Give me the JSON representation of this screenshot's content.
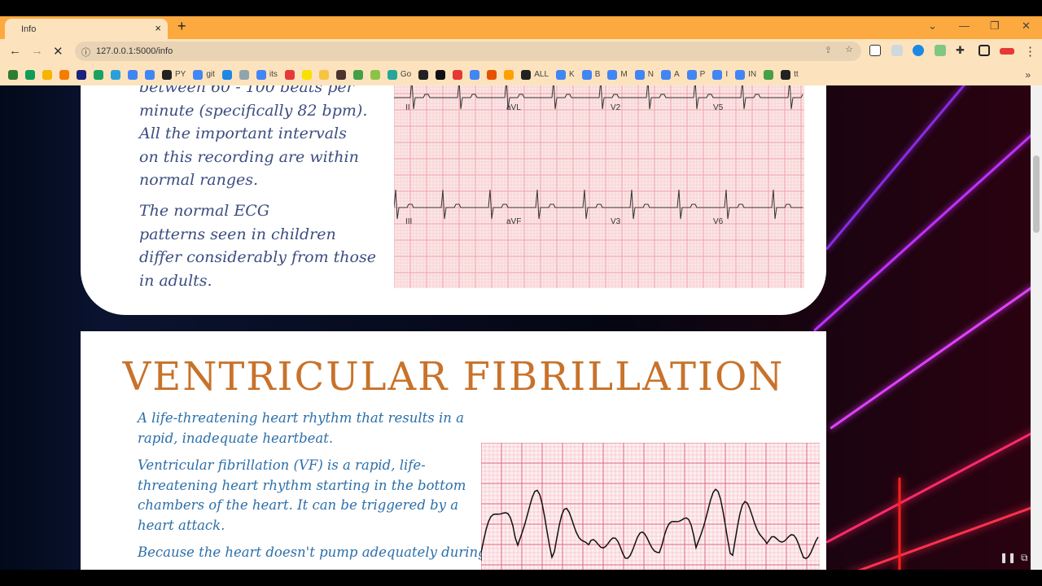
{
  "browser": {
    "tab_title": "Info",
    "tab_close": "×",
    "new_tab": "+",
    "url": "127.0.0.1:5000/info",
    "bookmarks": [
      {
        "label": "",
        "color": "#2e7d32"
      },
      {
        "label": "",
        "color": "#0f9d58"
      },
      {
        "label": "",
        "color": "#f4b400"
      },
      {
        "label": "",
        "color": "#f57c00"
      },
      {
        "label": "",
        "color": "#1a237e"
      },
      {
        "label": "",
        "color": "#1aa260"
      },
      {
        "label": "",
        "color": "#2aa0da"
      },
      {
        "label": "",
        "color": "#4285f4"
      },
      {
        "label": "",
        "color": "#4285f4"
      },
      {
        "label": "PY",
        "color": "#222"
      },
      {
        "label": "git",
        "color": "#4285f4"
      },
      {
        "label": "",
        "color": "#1e88e5"
      },
      {
        "label": "",
        "color": "#90a4ae"
      },
      {
        "label": "its",
        "color": "#4285f4"
      },
      {
        "label": "",
        "color": "#e53935"
      },
      {
        "label": "",
        "color": "#f9e000"
      },
      {
        "label": "",
        "color": "#f6c343"
      },
      {
        "label": "",
        "color": "#4e342e"
      },
      {
        "label": "",
        "color": "#43a047"
      },
      {
        "label": "",
        "color": "#8bc34a"
      },
      {
        "label": "Go",
        "color": "#26a69a"
      },
      {
        "label": "",
        "color": "#222"
      },
      {
        "label": "",
        "color": "#111"
      },
      {
        "label": "",
        "color": "#e53935"
      },
      {
        "label": "",
        "color": "#4285f4"
      },
      {
        "label": "",
        "color": "#e65100"
      },
      {
        "label": "",
        "color": "#ffa000"
      },
      {
        "label": "ALL",
        "color": "#222"
      },
      {
        "label": "K",
        "color": "#4285f4"
      },
      {
        "label": "B",
        "color": "#4285f4"
      },
      {
        "label": "M",
        "color": "#4285f4"
      },
      {
        "label": "N",
        "color": "#4285f4"
      },
      {
        "label": "A",
        "color": "#4285f4"
      },
      {
        "label": "P",
        "color": "#4285f4"
      },
      {
        "label": "I",
        "color": "#4285f4"
      },
      {
        "label": "IN",
        "color": "#4285f4"
      },
      {
        "label": "",
        "color": "#43a047"
      },
      {
        "label": "tt",
        "color": "#222"
      }
    ],
    "more_bookmarks": "»"
  },
  "card1": {
    "paragraph1_lines": [
      "between 60 - 100 beats per",
      "minute (specifically 82 bpm).",
      "All the important intervals",
      "on this recording are within",
      "normal ranges."
    ],
    "paragraph2_lines": [
      "The normal ECG",
      "patterns seen in children",
      "differ considerably from those",
      "in adults."
    ],
    "ecg_leads": [
      "II",
      "aVL",
      "V2",
      "V5",
      "III",
      "aVF",
      "V3",
      "V6"
    ]
  },
  "card2": {
    "title": "VENTRICULAR FIBRILLATION",
    "paragraph1": "A life-threatening heart rhythm that results in a rapid, inadequate heartbeat.",
    "paragraph2": "Ventricular fibrillation (VF) is a rapid, life-threatening heart rhythm starting in the bottom chambers of the heart. It can be triggered by a heart attack.",
    "paragraph3": "Because the heart doesn't pump adequately during ventricular fibrillation, sustained VF"
  },
  "colors": {
    "tabstrip": "#fca93f",
    "toolbar": "#fde3bd",
    "title": "#c8722a",
    "text_blue": "#2c6fa8",
    "ecg_grid": "#f2a5b2"
  }
}
